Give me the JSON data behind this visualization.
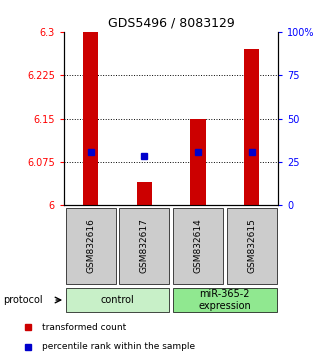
{
  "title": "GDS5496 / 8083129",
  "samples": [
    "GSM832616",
    "GSM832617",
    "GSM832614",
    "GSM832615"
  ],
  "bar_values": [
    6.3,
    6.04,
    6.15,
    6.27
  ],
  "percentile_values": [
    6.092,
    6.085,
    6.092,
    6.092
  ],
  "baseline": 6.0,
  "ylim_left": [
    6.0,
    6.3
  ],
  "ylim_right": [
    0,
    100
  ],
  "yticks_left": [
    6.0,
    6.075,
    6.15,
    6.225,
    6.3
  ],
  "ytick_labels_left": [
    "6",
    "6.075",
    "6.15",
    "6.225",
    "6.3"
  ],
  "yticks_right": [
    0,
    25,
    50,
    75,
    100
  ],
  "ytick_labels_right": [
    "0",
    "25",
    "50",
    "75",
    "100%"
  ],
  "gridlines": [
    6.075,
    6.15,
    6.225
  ],
  "groups": [
    {
      "label": "control",
      "samples": [
        0,
        1
      ],
      "color": "#c8f0c8"
    },
    {
      "label": "miR-365-2\nexpression",
      "samples": [
        2,
        3
      ],
      "color": "#90e890"
    }
  ],
  "bar_color": "#cc0000",
  "percentile_color": "#0000cc",
  "sample_box_color": "#cccccc",
  "background_color": "#ffffff",
  "protocol_label": "protocol",
  "legend_items": [
    {
      "color": "#cc0000",
      "label": "transformed count"
    },
    {
      "color": "#0000cc",
      "label": "percentile rank within the sample"
    }
  ]
}
